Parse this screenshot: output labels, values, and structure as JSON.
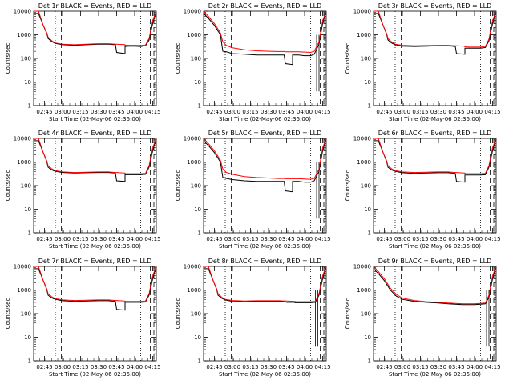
{
  "figure": {
    "background": "#ffffff",
    "axis_color": "#000000"
  },
  "chart_data": {
    "type": "line",
    "y_scale": "log",
    "ylim": [
      1,
      10000
    ],
    "y_ticks": [
      1,
      10,
      100,
      1000,
      10000
    ],
    "y_tick_labels": [
      "1",
      "10",
      "100",
      "1000",
      "10000"
    ],
    "xlim": [
      "02:36",
      "04:18"
    ],
    "x_ticks": [
      "02:45",
      "03:00",
      "03:15",
      "03:30",
      "03:45",
      "04:00",
      "04:15"
    ],
    "x_tick_labels": [
      "02:45",
      "03:00",
      "03:15",
      "03:30",
      "03:45",
      "04:00",
      "04:15"
    ],
    "ylabel": "Counts/sec",
    "xlabel": "Start Time (02-May-06 02:36:00)",
    "colors": {
      "events": "#000000",
      "lld": "#ff0000"
    },
    "panels": [
      {
        "title": "Det 1r BLACK = Events, RED = LLD",
        "x": [
          "02:36",
          "02:40",
          "02:44",
          "02:47",
          "02:48",
          "02:51",
          "02:54",
          "03:00",
          "03:10",
          "03:20",
          "03:30",
          "03:38",
          "03:44",
          "03:45",
          "03:52",
          "03:52",
          "03:55",
          "04:00",
          "04:05",
          "04:09",
          "04:12",
          "04:15",
          "04:18"
        ],
        "events": [
          8000,
          8000,
          2500,
          1100,
          700,
          520,
          430,
          380,
          360,
          380,
          400,
          400,
          380,
          180,
          160,
          320,
          330,
          330,
          320,
          340,
          600,
          3000,
          10000
        ],
        "lld": [
          10000,
          10000,
          2500,
          1200,
          800,
          560,
          450,
          400,
          380,
          400,
          420,
          420,
          400,
          400,
          380,
          360,
          360,
          360,
          350,
          370,
          700,
          4000,
          10000
        ],
        "dotted_lines": [
          "02:54",
          "04:05"
        ],
        "dashed_lines": [
          "02:59",
          "04:13",
          "04:16"
        ],
        "solid_drop_lines": []
      },
      {
        "title": "Det 2r BLACK = Events, RED = LLD",
        "x": [
          "02:36",
          "02:40",
          "02:45",
          "02:50",
          "02:52",
          "02:55",
          "03:00",
          "03:10",
          "03:20",
          "03:30",
          "03:38",
          "03:43",
          "03:44",
          "03:50",
          "03:50",
          "03:55",
          "04:00",
          "04:05",
          "04:08",
          "04:12",
          "04:15",
          "04:18"
        ],
        "events": [
          8000,
          5000,
          2500,
          1000,
          200,
          190,
          160,
          150,
          140,
          140,
          140,
          140,
          60,
          55,
          140,
          140,
          130,
          130,
          150,
          400,
          3000,
          10000
        ],
        "lld": [
          10000,
          6000,
          3000,
          1200,
          500,
          350,
          280,
          230,
          210,
          200,
          195,
          195,
          190,
          190,
          190,
          190,
          185,
          180,
          200,
          500,
          4000,
          10000
        ],
        "dotted_lines": [
          "02:54",
          "04:05"
        ],
        "dashed_lines": [
          "02:59",
          "04:13",
          "04:16"
        ],
        "solid_drop_lines": [
          "04:10",
          "04:12"
        ]
      },
      {
        "title": "Det 3r BLACK = Events, RED = LLD",
        "x": [
          "02:36",
          "02:40",
          "02:44",
          "02:47",
          "02:48",
          "02:51",
          "02:54",
          "03:00",
          "03:10",
          "03:20",
          "03:30",
          "03:38",
          "03:44",
          "03:45",
          "03:52",
          "03:52",
          "03:55",
          "04:00",
          "04:05",
          "04:09",
          "04:12",
          "04:15",
          "04:18"
        ],
        "events": [
          8000,
          8000,
          2500,
          1000,
          600,
          450,
          380,
          330,
          320,
          330,
          340,
          340,
          320,
          160,
          150,
          270,
          270,
          270,
          270,
          290,
          550,
          3000,
          10000
        ],
        "lld": [
          10000,
          10000,
          2500,
          1100,
          700,
          500,
          400,
          360,
          340,
          350,
          360,
          360,
          340,
          340,
          330,
          310,
          300,
          300,
          300,
          320,
          650,
          4000,
          10000
        ],
        "dotted_lines": [
          "02:54",
          "04:05"
        ],
        "dashed_lines": [
          "02:59",
          "04:13",
          "04:16"
        ],
        "solid_drop_lines": []
      },
      {
        "title": "Det 4r BLACK = Events, RED = LLD",
        "x": [
          "02:36",
          "02:40",
          "02:44",
          "02:47",
          "02:48",
          "02:51",
          "02:54",
          "03:00",
          "03:10",
          "03:20",
          "03:30",
          "03:38",
          "03:44",
          "03:45",
          "03:52",
          "03:52",
          "03:55",
          "04:00",
          "04:05",
          "04:09",
          "04:12",
          "04:15",
          "04:18"
        ],
        "events": [
          8000,
          8000,
          2500,
          1000,
          600,
          460,
          400,
          360,
          340,
          350,
          360,
          360,
          340,
          160,
          150,
          290,
          290,
          290,
          290,
          300,
          600,
          3000,
          10000
        ],
        "lld": [
          10000,
          10000,
          2500,
          1100,
          700,
          520,
          430,
          380,
          360,
          370,
          380,
          380,
          360,
          360,
          340,
          320,
          320,
          320,
          320,
          330,
          700,
          4000,
          10000
        ],
        "dotted_lines": [
          "02:54",
          "04:05"
        ],
        "dashed_lines": [
          "02:59",
          "04:13",
          "04:16"
        ],
        "solid_drop_lines": []
      },
      {
        "title": "Det 5r BLACK = Events, RED = LLD",
        "x": [
          "02:36",
          "02:40",
          "02:45",
          "02:50",
          "02:52",
          "02:55",
          "03:00",
          "03:10",
          "03:20",
          "03:30",
          "03:38",
          "03:43",
          "03:44",
          "03:50",
          "03:50",
          "03:55",
          "04:00",
          "04:05",
          "04:08",
          "04:12",
          "04:15",
          "04:18"
        ],
        "events": [
          8000,
          5000,
          2500,
          1000,
          220,
          200,
          180,
          160,
          150,
          150,
          150,
          150,
          60,
          55,
          150,
          150,
          140,
          140,
          160,
          400,
          3000,
          10000
        ],
        "lld": [
          10000,
          6000,
          3000,
          1200,
          500,
          360,
          300,
          240,
          220,
          210,
          200,
          200,
          195,
          195,
          195,
          195,
          190,
          185,
          200,
          500,
          4000,
          10000
        ],
        "dotted_lines": [
          "02:54",
          "04:05"
        ],
        "dashed_lines": [
          "02:59",
          "04:13",
          "04:16"
        ],
        "solid_drop_lines": [
          "04:10",
          "04:12"
        ]
      },
      {
        "title": "Det 6r BLACK = Events, RED = LLD",
        "x": [
          "02:36",
          "02:40",
          "02:44",
          "02:47",
          "02:48",
          "02:51",
          "02:54",
          "03:00",
          "03:10",
          "03:20",
          "03:30",
          "03:38",
          "03:44",
          "03:45",
          "03:52",
          "03:52",
          "03:55",
          "04:00",
          "04:05",
          "04:09",
          "04:12",
          "04:15",
          "04:18"
        ],
        "events": [
          8000,
          8000,
          2500,
          1000,
          600,
          460,
          400,
          350,
          330,
          340,
          350,
          350,
          330,
          150,
          140,
          280,
          280,
          280,
          280,
          290,
          600,
          3000,
          10000
        ],
        "lld": [
          10000,
          10000,
          2500,
          1100,
          700,
          520,
          430,
          380,
          360,
          370,
          380,
          380,
          360,
          360,
          340,
          320,
          320,
          320,
          320,
          330,
          700,
          4000,
          10000
        ],
        "dotted_lines": [
          "02:54",
          "04:05"
        ],
        "dashed_lines": [
          "02:59",
          "04:13",
          "04:16"
        ],
        "solid_drop_lines": []
      },
      {
        "title": "Det 7r BLACK = Events, RED = LLD",
        "x": [
          "02:36",
          "02:40",
          "02:44",
          "02:47",
          "02:48",
          "02:51",
          "02:54",
          "03:00",
          "03:10",
          "03:20",
          "03:30",
          "03:38",
          "03:44",
          "03:45",
          "03:52",
          "03:52",
          "03:55",
          "04:00",
          "04:05",
          "04:09",
          "04:12",
          "04:15",
          "04:18"
        ],
        "events": [
          8000,
          8000,
          2500,
          1000,
          600,
          460,
          400,
          350,
          330,
          340,
          350,
          350,
          330,
          150,
          140,
          300,
          300,
          300,
          300,
          310,
          600,
          3000,
          10000
        ],
        "lld": [
          10000,
          10000,
          2500,
          1100,
          700,
          520,
          430,
          380,
          360,
          370,
          380,
          380,
          360,
          360,
          340,
          330,
          330,
          330,
          330,
          340,
          700,
          4000,
          10000
        ],
        "dotted_lines": [
          "02:54",
          "04:05"
        ],
        "dashed_lines": [
          "02:59",
          "04:13",
          "04:16"
        ],
        "solid_drop_lines": []
      },
      {
        "title": "Det 8r BLACK = Events, RED = LLD",
        "x": [
          "02:36",
          "02:40",
          "02:44",
          "02:47",
          "02:48",
          "02:51",
          "02:54",
          "03:00",
          "03:10",
          "03:20",
          "03:30",
          "03:38",
          "03:44",
          "03:45",
          "03:52",
          "03:52",
          "03:55",
          "04:00",
          "04:05",
          "04:09",
          "04:12",
          "04:15",
          "04:18"
        ],
        "events": [
          8000,
          8000,
          2500,
          1000,
          600,
          450,
          380,
          330,
          320,
          330,
          330,
          330,
          320,
          300,
          300,
          290,
          290,
          290,
          290,
          300,
          600,
          3000,
          10000
        ],
        "lld": [
          10000,
          10000,
          2500,
          1100,
          700,
          500,
          400,
          360,
          340,
          350,
          350,
          350,
          340,
          340,
          330,
          320,
          320,
          320,
          320,
          330,
          700,
          4000,
          10000
        ],
        "dotted_lines": [
          "02:54",
          "04:05"
        ],
        "dashed_lines": [
          "02:59",
          "04:13",
          "04:16"
        ],
        "solid_drop_lines": [
          "04:09",
          "04:11"
        ]
      },
      {
        "title": "Det 9r BLACK = Events, RED = LLD",
        "x": [
          "02:36",
          "02:40",
          "02:45",
          "02:50",
          "02:55",
          "03:00",
          "03:10",
          "03:20",
          "03:30",
          "03:38",
          "03:44",
          "03:50",
          "03:55",
          "04:00",
          "04:05",
          "04:09",
          "04:12",
          "04:15",
          "04:18"
        ],
        "events": [
          8000,
          5000,
          2500,
          1000,
          550,
          400,
          330,
          300,
          280,
          260,
          250,
          240,
          240,
          240,
          250,
          260,
          500,
          3000,
          10000
        ],
        "lld": [
          10000,
          6000,
          3000,
          1200,
          650,
          450,
          360,
          320,
          300,
          280,
          270,
          260,
          260,
          260,
          270,
          280,
          600,
          4000,
          10000
        ],
        "dotted_lines": [
          "02:54",
          "04:05"
        ],
        "dashed_lines": [
          "02:59",
          "04:13",
          "04:16"
        ],
        "solid_drop_lines": [
          "04:10",
          "04:12"
        ]
      }
    ]
  }
}
